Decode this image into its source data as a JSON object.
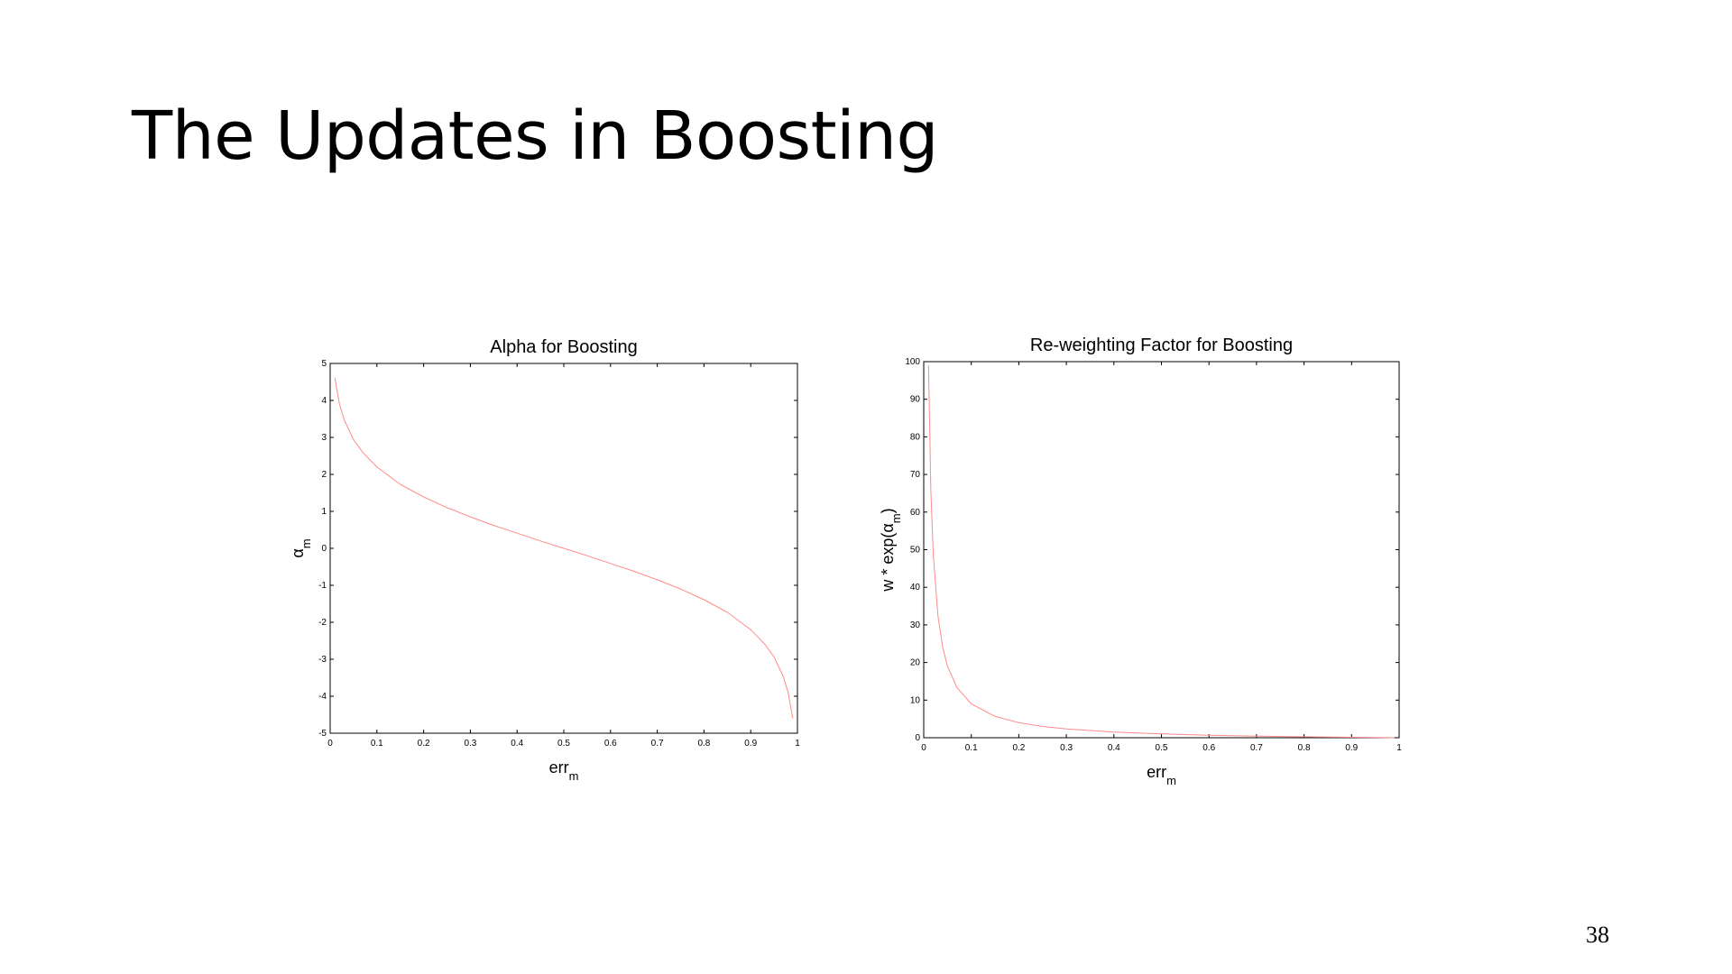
{
  "slide": {
    "title": "The Updates in Boosting",
    "page_number": "38"
  },
  "chart_data": [
    {
      "type": "line",
      "title": "Alpha for Boosting",
      "xlabel": "err",
      "xlabel_sub": "m",
      "ylabel": "α",
      "ylabel_sub": "m",
      "xlim": [
        0,
        1
      ],
      "ylim": [
        -5,
        5
      ],
      "x_ticks": [
        "0",
        "0.1",
        "0.2",
        "0.3",
        "0.4",
        "0.5",
        "0.6",
        "0.7",
        "0.8",
        "0.9",
        "1"
      ],
      "y_ticks": [
        "-5",
        "-4",
        "-3",
        "-2",
        "-1",
        "0",
        "1",
        "2",
        "3",
        "4",
        "5"
      ],
      "grid": false,
      "line_color": "#ff8a8a",
      "series": [
        {
          "x": [
            0.01,
            0.02,
            0.03,
            0.05,
            0.07,
            0.1,
            0.15,
            0.2,
            0.25,
            0.3,
            0.35,
            0.4,
            0.45,
            0.5,
            0.55,
            0.6,
            0.65,
            0.7,
            0.75,
            0.8,
            0.85,
            0.9,
            0.93,
            0.95,
            0.97,
            0.98,
            0.99
          ],
          "y": [
            4.6,
            3.89,
            3.48,
            2.94,
            2.59,
            2.2,
            1.73,
            1.39,
            1.1,
            0.85,
            0.62,
            0.41,
            0.2,
            0.0,
            -0.2,
            -0.41,
            -0.62,
            -0.85,
            -1.1,
            -1.39,
            -1.73,
            -2.2,
            -2.59,
            -2.94,
            -3.48,
            -3.89,
            -4.6
          ]
        }
      ]
    },
    {
      "type": "line",
      "title": "Re-weighting Factor for Boosting",
      "xlabel": "err",
      "xlabel_sub": "m",
      "ylabel": "w * exp(α",
      "ylabel_sub": "m",
      "ylabel_suffix": ")",
      "xlim": [
        0,
        1
      ],
      "ylim": [
        0,
        100
      ],
      "x_ticks": [
        "0",
        "0.1",
        "0.2",
        "0.3",
        "0.4",
        "0.5",
        "0.6",
        "0.7",
        "0.8",
        "0.9",
        "1"
      ],
      "y_ticks": [
        "0",
        "10",
        "20",
        "30",
        "40",
        "50",
        "60",
        "70",
        "80",
        "90",
        "100"
      ],
      "grid": false,
      "line_color": "#ff8a8a",
      "series": [
        {
          "x": [
            0.01,
            0.015,
            0.02,
            0.03,
            0.04,
            0.05,
            0.07,
            0.1,
            0.15,
            0.2,
            0.25,
            0.3,
            0.4,
            0.5,
            0.6,
            0.7,
            0.8,
            0.9,
            0.95,
            0.99
          ],
          "y": [
            99,
            65.7,
            49,
            32.3,
            24,
            19,
            13.3,
            9,
            5.67,
            4,
            3,
            2.33,
            1.5,
            1,
            0.67,
            0.43,
            0.25,
            0.11,
            0.05,
            0.01
          ]
        }
      ]
    }
  ]
}
